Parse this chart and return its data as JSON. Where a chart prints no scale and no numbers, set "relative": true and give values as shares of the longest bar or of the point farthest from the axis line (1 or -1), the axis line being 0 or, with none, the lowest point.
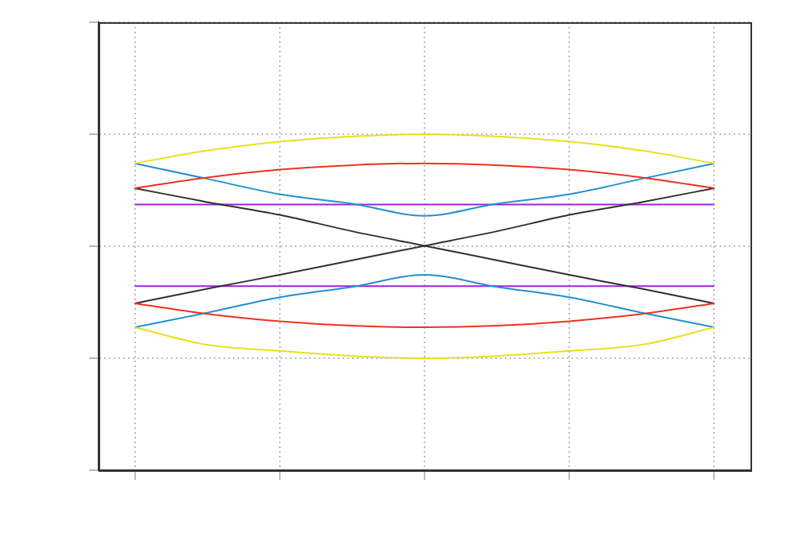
{
  "chart_data": {
    "type": "line",
    "relative": true,
    "grid": true,
    "legend": false,
    "marker": "none",
    "line_style": "solid",
    "categories": [
      null,
      null,
      null,
      null,
      null,
      null,
      null,
      null,
      null
    ],
    "series": [
      {
        "color": "#e8e020",
        "values": [
          0.87,
          0.927,
          0.967,
          0.99,
          1,
          0.99,
          0.967,
          0.927,
          0.87
        ]
      },
      {
        "color": "#e8e020",
        "values": [
          0.138,
          0.06,
          0.033,
          0.01,
          0,
          0.01,
          0.033,
          0.06,
          0.138
        ]
      },
      {
        "color": "#f03020",
        "values": [
          0.759,
          0.807,
          0.842,
          0.862,
          0.87,
          0.862,
          0.842,
          0.807,
          0.759
        ]
      },
      {
        "color": "#f03020",
        "values": [
          0.245,
          0.198,
          0.165,
          0.145,
          0.138,
          0.145,
          0.165,
          0.198,
          0.245
        ]
      },
      {
        "color": "#2090d0",
        "values": [
          0.87,
          0.801,
          0.732,
          0.69,
          0.636,
          0.69,
          0.732,
          0.801,
          0.87
        ]
      },
      {
        "color": "#2090d0",
        "values": [
          0.138,
          0.203,
          0.272,
          0.318,
          0.372,
          0.318,
          0.272,
          0.203,
          0.138
        ]
      },
      {
        "color": "#303030",
        "values": [
          0.759,
          0.697,
          0.64,
          0.567,
          0.502,
          0.437,
          0.372,
          0.31,
          0.245
        ]
      },
      {
        "color": "#303030",
        "values": [
          0.245,
          0.31,
          0.372,
          0.437,
          0.502,
          0.567,
          0.64,
          0.697,
          0.759
        ]
      },
      {
        "color": "#a020e0",
        "values": [
          0.686,
          0.686,
          0.686,
          0.686,
          0.686,
          0.686,
          0.686,
          0.686,
          0.686
        ]
      },
      {
        "color": "#a020e0",
        "values": [
          0.322,
          0.322,
          0.322,
          0.322,
          0.322,
          0.322,
          0.322,
          0.322,
          0.322
        ]
      }
    ]
  }
}
